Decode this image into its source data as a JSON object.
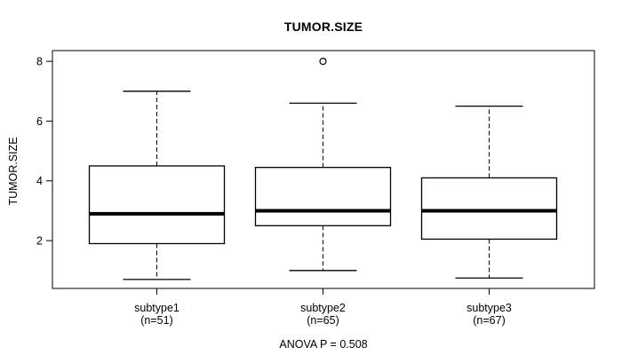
{
  "title": "TUMOR.SIZE",
  "caption": "ANOVA P = 0.508",
  "colors": {
    "background": "#ffffff",
    "stroke": "#000000",
    "text": "#000000"
  },
  "chart_data": {
    "type": "boxplot",
    "title": "TUMOR.SIZE",
    "xlabel": "",
    "ylabel": "TUMOR.SIZE",
    "yticks": [
      2,
      4,
      6,
      8
    ],
    "ylim": [
      0.4,
      8.36
    ],
    "grid": false,
    "annotation": "ANOVA P = 0.508",
    "whisker_style": "dashed",
    "groups": [
      {
        "label": "subtype1",
        "sublabel": "(n=51)",
        "n": 51,
        "whisker_low": 0.7,
        "q1": 1.9,
        "median": 2.9,
        "q3": 4.5,
        "whisker_high": 7.0,
        "outliers": []
      },
      {
        "label": "subtype2",
        "sublabel": "(n=65)",
        "n": 65,
        "whisker_low": 1.0,
        "q1": 2.5,
        "median": 3.0,
        "q3": 4.45,
        "whisker_high": 6.6,
        "outliers": [
          8
        ]
      },
      {
        "label": "subtype3",
        "sublabel": "(n=67)",
        "n": 67,
        "whisker_low": 0.75,
        "q1": 2.05,
        "median": 3.0,
        "q3": 4.1,
        "whisker_high": 6.5,
        "outliers": []
      }
    ]
  }
}
